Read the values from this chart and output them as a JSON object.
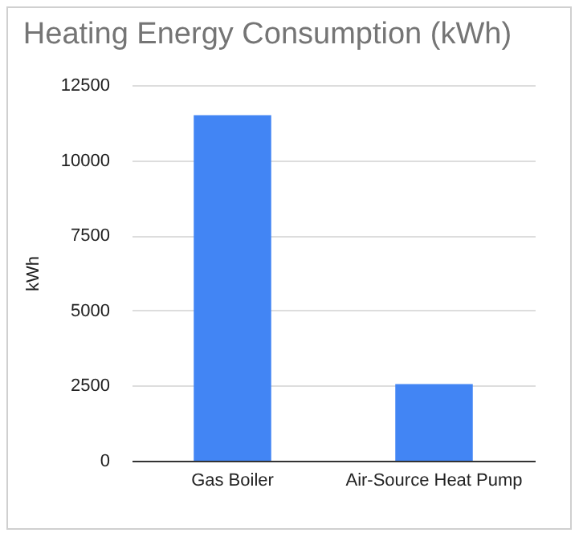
{
  "chart_data": {
    "type": "bar",
    "title": "Heating Energy Consumption (kWh)",
    "ylabel": "kWh",
    "categories": [
      "Gas Boiler",
      "Air-Source Heat Pump"
    ],
    "values": [
      11500,
      2550
    ],
    "color": "#4285f4",
    "ylim": [
      0,
      12500
    ],
    "yticks": [
      0,
      2500,
      5000,
      7500,
      10000,
      12500
    ],
    "grid": "y"
  }
}
